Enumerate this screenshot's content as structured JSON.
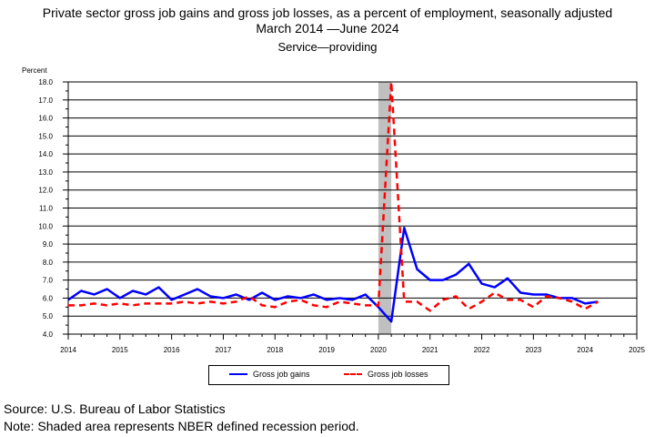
{
  "titles": {
    "line1": "Private sector gross job gains and gross job losses, as a percent of employment, seasonally adjusted",
    "line2": "March 2014  —June 2024",
    "line3": "Service—providing"
  },
  "footer": {
    "source": "Source: U.S. Bureau of Labor Statistics",
    "note": "Note: Shaded area represents NBER defined recession period."
  },
  "colors": {
    "gains": "#0000ff",
    "losses": "#ff0000",
    "recession": "#c0c0c0"
  },
  "chart_data": {
    "type": "line",
    "title": "Private sector gross job gains and gross job losses, as a percent of employment, seasonally adjusted",
    "ylabel": "Percent",
    "xlabel": "",
    "ylim": [
      4.0,
      18.0
    ],
    "xlim": [
      2014,
      2025
    ],
    "y_ticks": [
      "4.0",
      "5.0",
      "6.0",
      "7.0",
      "8.0",
      "9.0",
      "10.0",
      "11.0",
      "12.0",
      "13.0",
      "14.0",
      "15.0",
      "16.0",
      "17.0",
      "18.0"
    ],
    "x_ticks": [
      "2014",
      "2015",
      "2016",
      "2017",
      "2018",
      "2019",
      "2020",
      "2021",
      "2022",
      "2023",
      "2024",
      "2025"
    ],
    "grid": "horizontal",
    "legend_position": "bottom",
    "recession": {
      "start": 2020.0,
      "end": 2020.25
    },
    "x": [
      2014.0,
      2014.25,
      2014.5,
      2014.75,
      2015.0,
      2015.25,
      2015.5,
      2015.75,
      2016.0,
      2016.25,
      2016.5,
      2016.75,
      2017.0,
      2017.25,
      2017.5,
      2017.75,
      2018.0,
      2018.25,
      2018.5,
      2018.75,
      2019.0,
      2019.25,
      2019.5,
      2019.75,
      2020.0,
      2020.25,
      2020.5,
      2020.75,
      2021.0,
      2021.25,
      2021.5,
      2021.75,
      2022.0,
      2022.25,
      2022.5,
      2022.75,
      2023.0,
      2023.25,
      2023.5,
      2023.75,
      2024.0,
      2024.25
    ],
    "series": [
      {
        "name": "Gross job gains",
        "style": "solid",
        "values": [
          5.9,
          6.4,
          6.2,
          6.5,
          6.0,
          6.4,
          6.2,
          6.6,
          5.9,
          6.2,
          6.5,
          6.1,
          6.0,
          6.2,
          5.9,
          6.3,
          5.9,
          6.1,
          6.0,
          6.2,
          5.9,
          6.0,
          5.9,
          6.2,
          5.5,
          4.7,
          9.9,
          7.6,
          7.0,
          7.0,
          7.3,
          7.9,
          6.8,
          6.6,
          7.1,
          6.3,
          6.2,
          6.2,
          6.0,
          6.0,
          5.7,
          5.8
        ]
      },
      {
        "name": "Gross job losses",
        "style": "dashed",
        "values": [
          5.6,
          5.6,
          5.7,
          5.6,
          5.7,
          5.6,
          5.7,
          5.7,
          5.7,
          5.8,
          5.7,
          5.8,
          5.7,
          5.8,
          6.1,
          5.6,
          5.5,
          5.8,
          5.9,
          5.6,
          5.5,
          5.8,
          5.7,
          5.6,
          5.6,
          18.0,
          5.8,
          5.8,
          5.3,
          5.9,
          6.1,
          5.4,
          5.8,
          6.3,
          5.9,
          5.9,
          5.5,
          6.1,
          6.0,
          5.8,
          5.4,
          5.8
        ]
      }
    ]
  }
}
